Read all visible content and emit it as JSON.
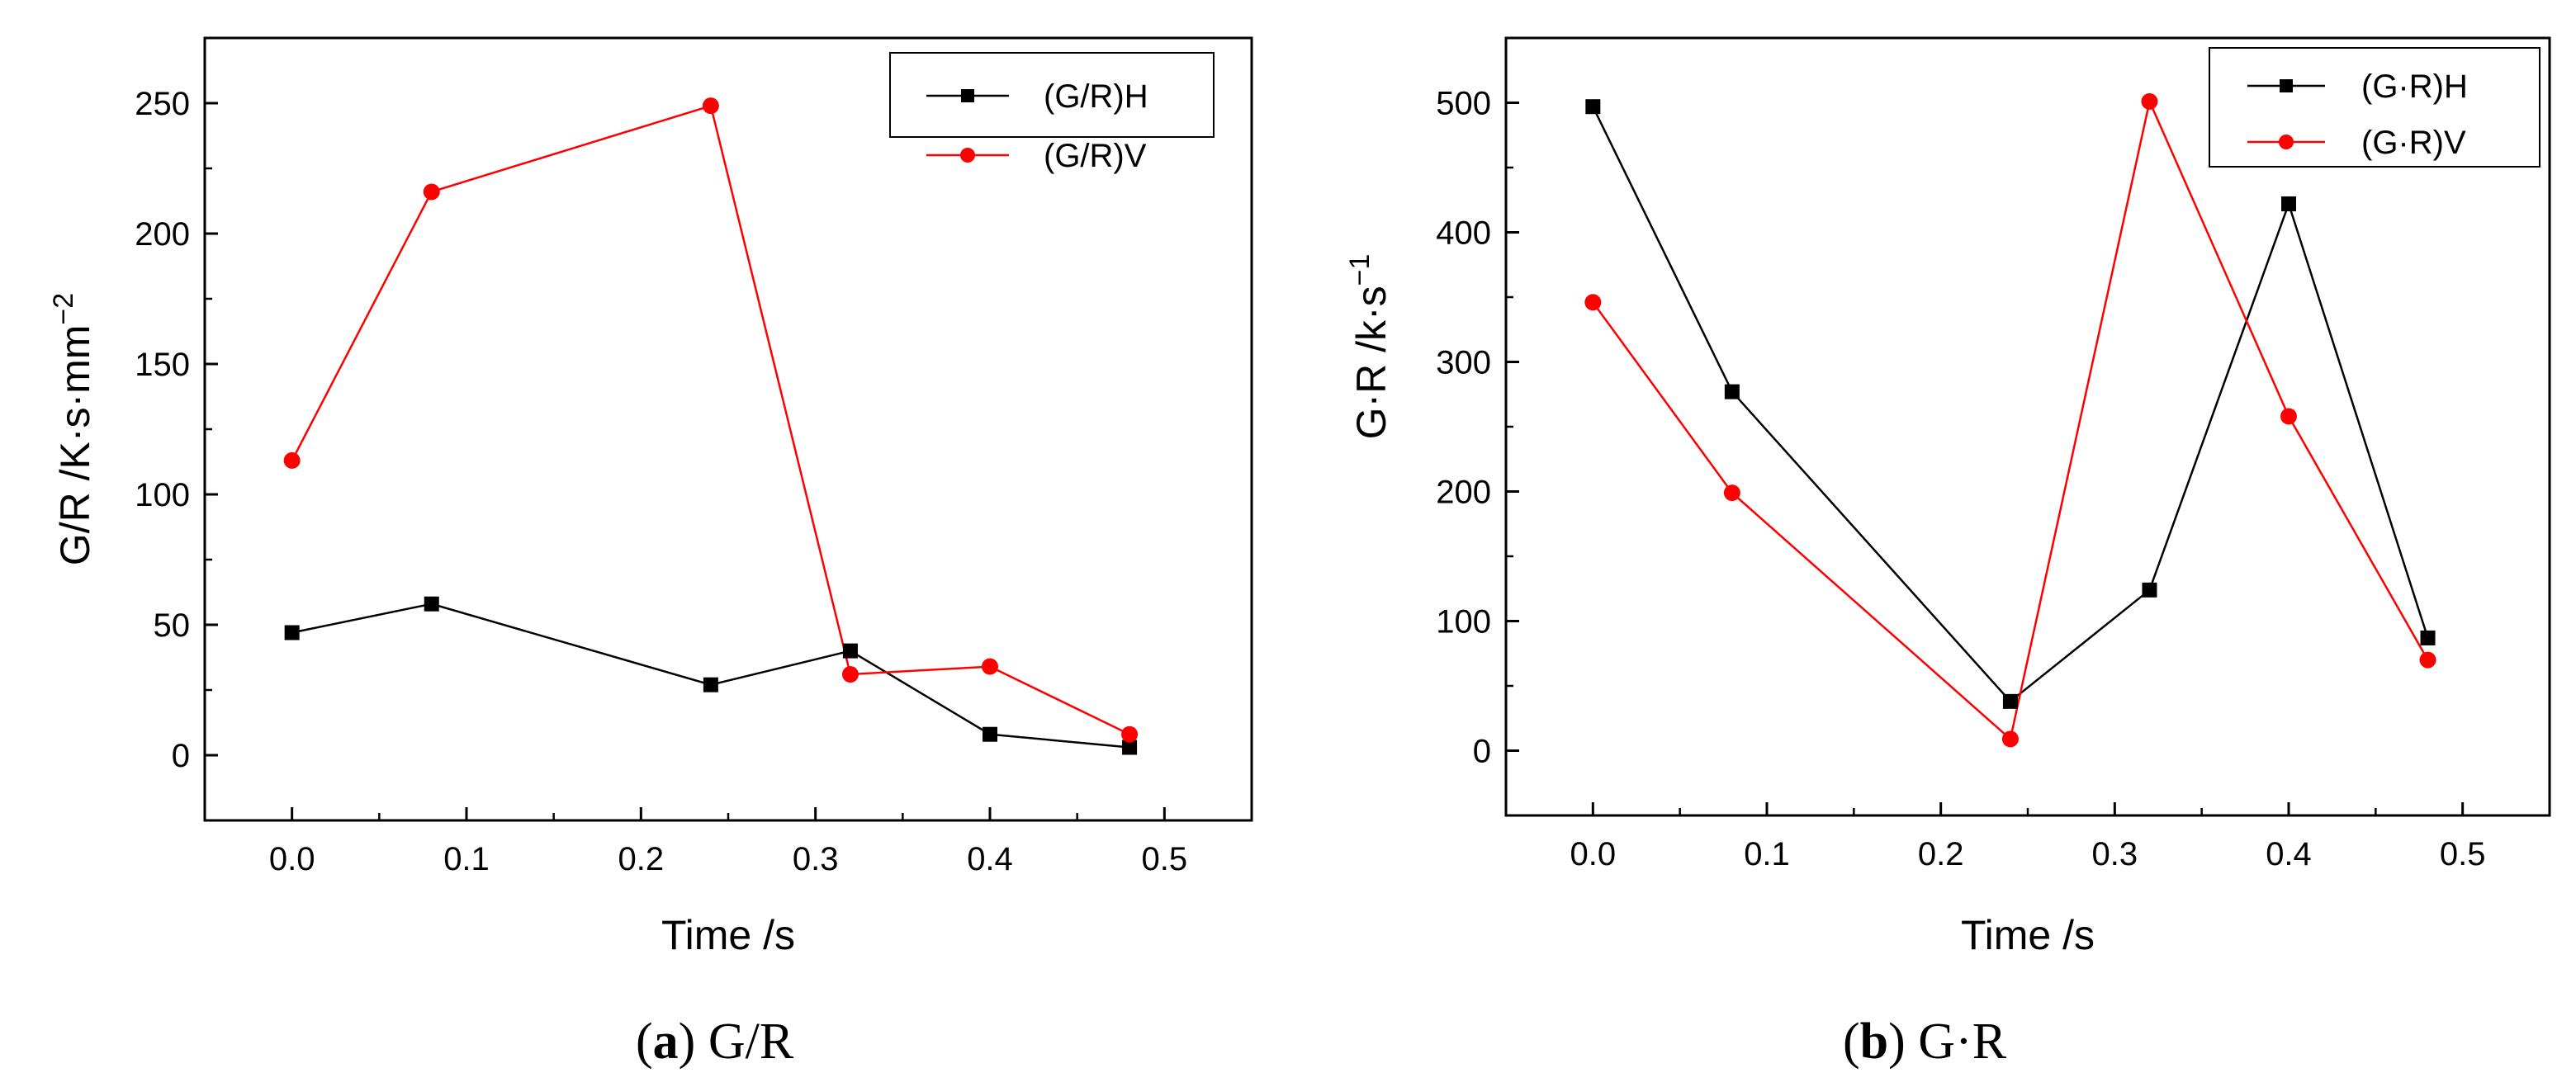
{
  "chart_data": [
    {
      "type": "line",
      "title": "",
      "xlabel": "Time /s",
      "ylabel_main": "G/R /K·s·mm",
      "ylabel_sup": "−2",
      "x": [
        0.0,
        0.08,
        0.24,
        0.32,
        0.4,
        0.48
      ],
      "xlim": [
        -0.05,
        0.55
      ],
      "ylim": [
        -25,
        275
      ],
      "xticks": [
        0.0,
        0.1,
        0.2,
        0.3,
        0.4,
        0.5
      ],
      "xtick_labels": [
        "0.0",
        "0.1",
        "0.2",
        "0.3",
        "0.4",
        "0.5"
      ],
      "yticks": [
        0,
        50,
        100,
        150,
        200,
        250
      ],
      "ytick_labels": [
        "0",
        "50",
        "100",
        "150",
        "200",
        "250"
      ],
      "series": [
        {
          "name": "(G/R)H",
          "color": "#000000",
          "marker": "square",
          "values": [
            47,
            58,
            27,
            40,
            8,
            3
          ]
        },
        {
          "name": "(G/R)V",
          "color": "#ff0000",
          "marker": "circle",
          "values": [
            113,
            216,
            249,
            31,
            34,
            8
          ]
        }
      ],
      "legend_position": "top-right",
      "caption_label": "a",
      "caption_text": "G/R"
    },
    {
      "type": "line",
      "title": "",
      "xlabel": "Time /s",
      "ylabel_main": "G·R /k·s",
      "ylabel_sup": "−1",
      "x": [
        0.0,
        0.08,
        0.24,
        0.32,
        0.4,
        0.48
      ],
      "xlim": [
        -0.05,
        0.55
      ],
      "ylim": [
        -50,
        550
      ],
      "xticks": [
        0.0,
        0.1,
        0.2,
        0.3,
        0.4,
        0.5
      ],
      "xtick_labels": [
        "0.0",
        "0.1",
        "0.2",
        "0.3",
        "0.4",
        "0.5"
      ],
      "yticks": [
        0,
        100,
        200,
        300,
        400,
        500
      ],
      "ytick_labels": [
        "0",
        "100",
        "200",
        "300",
        "400",
        "500"
      ],
      "series": [
        {
          "name": "(G·R)H",
          "color": "#000000",
          "marker": "square",
          "values": [
            497,
            277,
            38,
            124,
            422,
            87
          ]
        },
        {
          "name": "(G·R)V",
          "color": "#ff0000",
          "marker": "circle",
          "values": [
            346,
            199,
            9,
            501,
            258,
            70
          ]
        }
      ],
      "legend_position": "top-right",
      "caption_label": "b",
      "caption_text": "G·R"
    }
  ]
}
